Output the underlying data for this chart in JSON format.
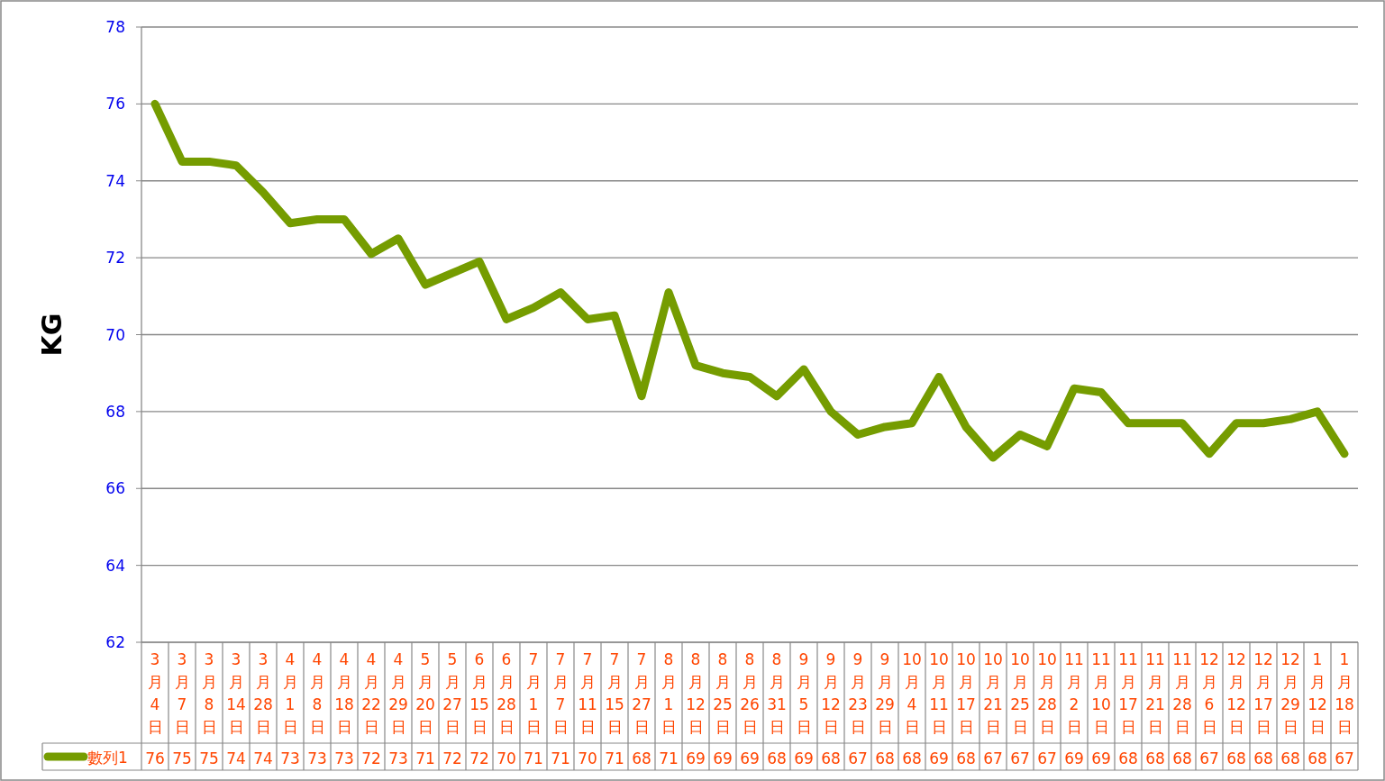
{
  "chart_data": {
    "type": "line",
    "ylabel": "KG",
    "ylim": [
      62,
      78
    ],
    "yticks": [
      62,
      64,
      66,
      68,
      70,
      72,
      74,
      76,
      78
    ],
    "grid": "y",
    "legend": "bottom",
    "categories": [
      "3月4日",
      "3月7日",
      "3月8日",
      "3月14日",
      "3月28日",
      "4月1日",
      "4月8日",
      "4月18日",
      "4月22日",
      "4月29日",
      "5月20日",
      "5月27日",
      "6月15日",
      "6月28日",
      "7月1日",
      "7月7日",
      "7月11日",
      "7月15日",
      "7月27日",
      "8月1日",
      "8月12日",
      "8月25日",
      "8月26日",
      "8月31日",
      "9月5日",
      "9月12日",
      "9月23日",
      "9月29日",
      "10月4日",
      "10月11日",
      "10月17日",
      "10月21日",
      "10月25日",
      "10月28日",
      "11月2日",
      "11月10日",
      "11月17日",
      "11月21日",
      "11月28日",
      "12月6日",
      "12月12日",
      "12月17日",
      "12月29日",
      "1月12日",
      "1月18日"
    ],
    "series": [
      {
        "name": "數列1",
        "color": "#759c00",
        "values": [
          76.0,
          74.5,
          74.5,
          74.4,
          73.7,
          72.9,
          73.0,
          73.0,
          72.1,
          72.5,
          71.3,
          71.6,
          71.9,
          70.4,
          70.7,
          71.1,
          70.4,
          70.5,
          68.4,
          71.1,
          69.2,
          69.0,
          68.9,
          68.4,
          69.1,
          68.0,
          67.4,
          67.6,
          67.7,
          68.9,
          67.6,
          66.8,
          67.4,
          67.1,
          68.6,
          68.5,
          67.7,
          67.7,
          67.7,
          66.9,
          67.7,
          67.7,
          67.8,
          68.0,
          66.9
        ],
        "value_labels": [
          "76",
          "75",
          "75",
          "74",
          "74",
          "73",
          "73",
          "73",
          "72",
          "73",
          "71",
          "72",
          "72",
          "70",
          "71",
          "71",
          "70",
          "71",
          "68",
          "71",
          "69",
          "69",
          "69",
          "68",
          "69",
          "68",
          "67",
          "68",
          "68",
          "69",
          "68",
          "67",
          "67",
          "67",
          "69",
          "69",
          "68",
          "68",
          "68",
          "67",
          "68",
          "68",
          "68",
          "68",
          "67"
        ]
      }
    ]
  }
}
